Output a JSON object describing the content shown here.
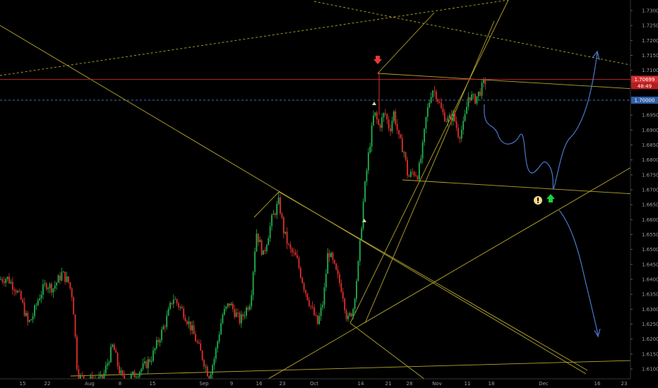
{
  "chart_data": {
    "type": "candlestick",
    "y_axis": {
      "ticks": [
        "1.73000",
        "1.72500",
        "1.72000",
        "1.71500",
        "1.71000",
        "1.70500",
        "1.70000",
        "1.69500",
        "1.69000",
        "1.68500",
        "1.68000",
        "1.67500",
        "1.67000",
        "1.66500",
        "1.66000",
        "1.65500",
        "1.65000",
        "1.64500",
        "1.64000",
        "1.63500",
        "1.63000",
        "1.62500",
        "1.62000",
        "1.61500",
        "1.61000"
      ],
      "range": [
        1.6075,
        1.7325
      ]
    },
    "x_axis": {
      "ticks": [
        "15",
        "22",
        "Aug",
        "8",
        "15",
        "Sep",
        "9",
        "16",
        "23",
        "Oct",
        "14",
        "21",
        "28",
        "Nov",
        "11",
        "18",
        "Dec",
        "16",
        "23"
      ]
    },
    "price_label": "1.70699",
    "countdown_label": "48:49",
    "level_label": "1.70000",
    "price_level": 1.70699,
    "dashed_level": 1.7,
    "bull_color": "#22b14c",
    "bear_color": "#e0302b",
    "annotations": {
      "red_arrow": "down-arrow-icon",
      "green_arrow": "up-arrow-icon",
      "warning": "exclamation-icon"
    }
  }
}
